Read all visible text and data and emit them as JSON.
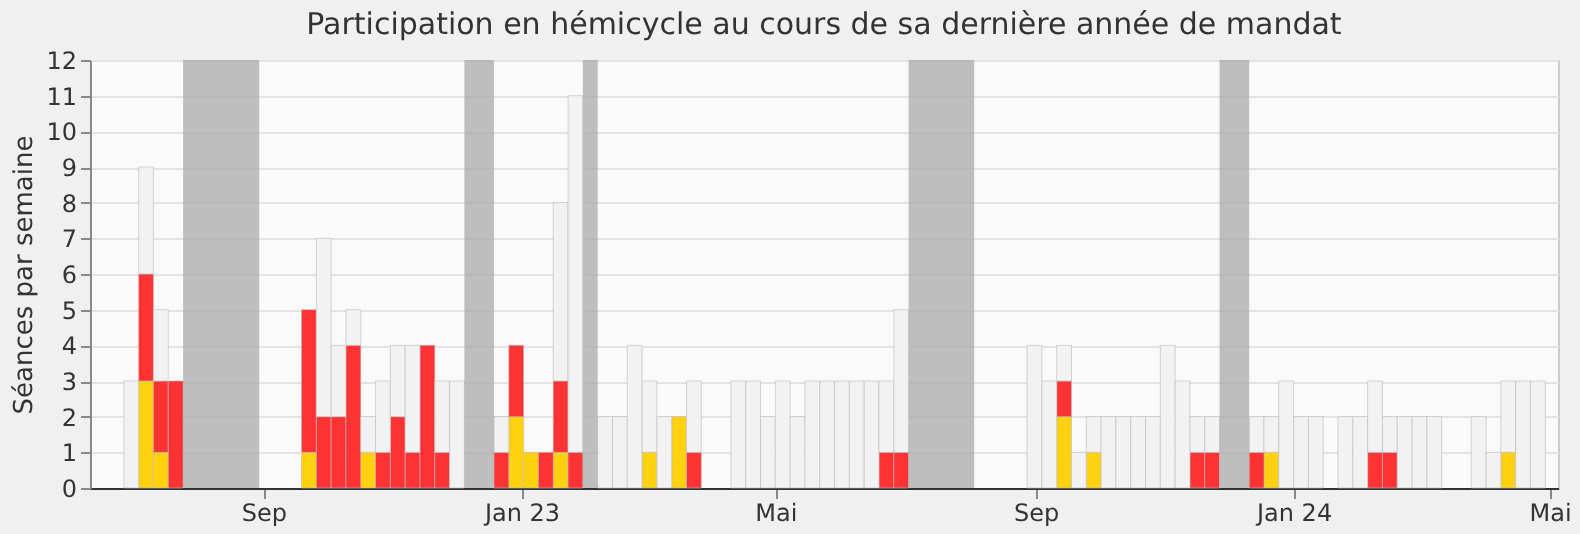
{
  "chart_data": {
    "type": "bar",
    "stacked": true,
    "title": "Participation en hémicycle au cours de sa dernière année de mandat",
    "ylabel": "Séances par semaine",
    "x": [
      "2022-06-27",
      "2022-07-04",
      "2022-07-11",
      "2022-07-18",
      "2022-09-19",
      "2022-09-26",
      "2022-10-03",
      "2022-10-10",
      "2022-10-17",
      "2022-10-24",
      "2022-10-31",
      "2022-11-07",
      "2022-11-14",
      "2022-11-21",
      "2022-11-28",
      "2022-12-19",
      "2022-12-26",
      "2023-01-02",
      "2023-01-09",
      "2023-01-16",
      "2023-01-23",
      "2023-02-06",
      "2023-02-13",
      "2023-02-20",
      "2023-02-27",
      "2023-03-06",
      "2023-03-13",
      "2023-03-20",
      "2023-04-10",
      "2023-04-17",
      "2023-04-24",
      "2023-05-01",
      "2023-05-08",
      "2023-05-15",
      "2023-05-22",
      "2023-05-29",
      "2023-06-05",
      "2023-06-12",
      "2023-06-19",
      "2023-06-26",
      "2023-08-28",
      "2023-09-04",
      "2023-09-11",
      "2023-09-18",
      "2023-09-25",
      "2023-10-02",
      "2023-10-09",
      "2023-10-16",
      "2023-10-23",
      "2023-10-30",
      "2023-11-06",
      "2023-11-13",
      "2023-11-20",
      "2023-12-11",
      "2023-12-18",
      "2023-12-25",
      "2024-01-01",
      "2024-01-08",
      "2024-01-22",
      "2024-01-29",
      "2024-02-05",
      "2024-02-12",
      "2024-02-19",
      "2024-02-26",
      "2024-03-04",
      "2024-03-25",
      "2024-04-01",
      "2024-04-08",
      "2024-04-15",
      "2024-04-22"
    ],
    "series": [
      {
        "color": "#ffd10f",
        "values": [
          null,
          3,
          1,
          null,
          1,
          null,
          null,
          null,
          1,
          null,
          null,
          null,
          null,
          null,
          null,
          null,
          2,
          1,
          null,
          1,
          null,
          null,
          null,
          null,
          1,
          null,
          2,
          null,
          null,
          null,
          null,
          null,
          null,
          null,
          null,
          null,
          null,
          null,
          null,
          null,
          null,
          null,
          2,
          null,
          1,
          null,
          null,
          null,
          null,
          null,
          null,
          null,
          null,
          null,
          1,
          null,
          null,
          null,
          null,
          null,
          null,
          null,
          null,
          null,
          null,
          null,
          null,
          1,
          null,
          null
        ]
      },
      {
        "color": "#ff3333",
        "values": [
          null,
          3,
          2,
          3,
          4,
          2,
          2,
          4,
          null,
          1,
          2,
          1,
          4,
          1,
          null,
          1,
          2,
          null,
          1,
          2,
          1,
          null,
          null,
          null,
          null,
          null,
          null,
          1,
          null,
          null,
          null,
          null,
          null,
          null,
          null,
          null,
          null,
          null,
          1,
          1,
          null,
          null,
          1,
          null,
          null,
          null,
          null,
          null,
          null,
          null,
          null,
          1,
          1,
          1,
          null,
          null,
          null,
          null,
          null,
          null,
          1,
          1,
          null,
          null,
          null,
          null,
          null,
          null,
          null,
          null
        ]
      },
      {
        "color": "#f2f2f2",
        "values": [
          3,
          3,
          2,
          null,
          null,
          5,
          2,
          1,
          1,
          2,
          2,
          3,
          null,
          2,
          3,
          1,
          null,
          null,
          null,
          5,
          10,
          2,
          2,
          4,
          2,
          2,
          null,
          2,
          3,
          3,
          2,
          3,
          2,
          3,
          3,
          3,
          3,
          3,
          2,
          4,
          4,
          3,
          1,
          1,
          1,
          2,
          2,
          2,
          2,
          4,
          3,
          1,
          1,
          1,
          1,
          3,
          2,
          2,
          2,
          2,
          2,
          1,
          2,
          2,
          2,
          2,
          1,
          2,
          3,
          3
        ]
      }
    ],
    "bands": [
      {
        "axis": "x",
        "from": "2022-07-25",
        "to": "2022-08-30",
        "color": "#aaaaaa"
      },
      {
        "axis": "x",
        "from": "2022-12-05",
        "to": "2022-12-19",
        "color": "#aaaaaa"
      },
      {
        "axis": "x",
        "from": "2023-01-30",
        "to": "2023-02-06",
        "color": "#aaaaaa"
      },
      {
        "axis": "x",
        "from": "2023-07-03",
        "to": "2023-08-03",
        "color": "#aaaaaa"
      },
      {
        "axis": "x",
        "from": "2023-11-27",
        "to": "2023-12-11",
        "color": "#aaaaaa"
      }
    ],
    "xlim": [
      "2022-06-11",
      "2024-05-05"
    ],
    "xticks": [
      {
        "value": "2022-09-01",
        "label": "Sep"
      },
      {
        "value": "2023-01-01",
        "label": "Jan 23"
      },
      {
        "value": "2023-05-01",
        "label": "Mai"
      },
      {
        "value": "2023-09-01",
        "label": "Sep"
      },
      {
        "value": "2024-01-01",
        "label": "Jan 24"
      },
      {
        "value": "2024-05-01",
        "label": "Mai"
      }
    ],
    "ylim": [
      0,
      12
    ],
    "yticks": [
      0,
      1,
      2,
      3,
      4,
      5,
      6,
      7,
      8,
      9,
      10,
      11,
      12
    ],
    "grid": "y"
  }
}
